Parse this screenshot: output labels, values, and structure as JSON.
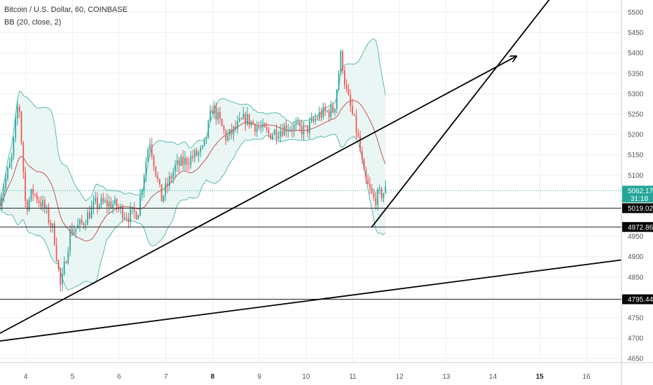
{
  "header": {
    "symbol_line": "Bitcoin / U.S. Dollar, 60, COINBASE",
    "indicator_line": "BB (20, close, 2)"
  },
  "colors": {
    "up": "#26a69a",
    "down": "#ef5350",
    "bb_band": "#26a69a",
    "bb_fill": "#e6f4f2",
    "bb_basis": "#b71c1c",
    "grid": "#eeeeee",
    "trendline": "#000000",
    "level_line": "#222222",
    "price_line": "#26a69a"
  },
  "chart_data": {
    "type": "candlestick",
    "symbol": "Bitcoin / U.S. Dollar",
    "interval": "60",
    "exchange": "COINBASE",
    "ylim": [
      4640,
      5530
    ],
    "y_ticks": [
      5500,
      5450,
      5400,
      5350,
      5300,
      5250,
      5200,
      5150,
      5100,
      4950,
      4900,
      4850,
      4800,
      4750,
      4700,
      4650
    ],
    "x_ticks": [
      {
        "label": "4",
        "day": 4,
        "bold": false
      },
      {
        "label": "5",
        "day": 5,
        "bold": false
      },
      {
        "label": "6",
        "day": 6,
        "bold": false
      },
      {
        "label": "7",
        "day": 7,
        "bold": false
      },
      {
        "label": "8",
        "day": 8,
        "bold": true
      },
      {
        "label": "9",
        "day": 9,
        "bold": false
      },
      {
        "label": "10",
        "day": 10,
        "bold": false
      },
      {
        "label": "11",
        "day": 11,
        "bold": false
      },
      {
        "label": "12",
        "day": 12,
        "bold": false
      },
      {
        "label": "13",
        "day": 13,
        "bold": false
      },
      {
        "label": "14",
        "day": 14,
        "bold": false
      },
      {
        "label": "15",
        "day": 15,
        "bold": true
      },
      {
        "label": "16",
        "day": 16,
        "bold": false
      }
    ],
    "xlim_days": [
      3.45,
      16.75
    ],
    "candle_series_keypoints": [
      {
        "day": 3.45,
        "close": 5040
      },
      {
        "day": 3.55,
        "close": 5080
      },
      {
        "day": 3.7,
        "close": 5140
      },
      {
        "day": 3.85,
        "close": 5290
      },
      {
        "day": 4.0,
        "close": 5020
      },
      {
        "day": 4.15,
        "close": 5060
      },
      {
        "day": 4.4,
        "close": 5020
      },
      {
        "day": 4.6,
        "close": 4960
      },
      {
        "day": 4.75,
        "close": 4820
      },
      {
        "day": 4.95,
        "close": 4960
      },
      {
        "day": 5.2,
        "close": 4980
      },
      {
        "day": 5.5,
        "close": 5030
      },
      {
        "day": 5.85,
        "close": 5030
      },
      {
        "day": 6.2,
        "close": 5000
      },
      {
        "day": 6.4,
        "close": 5010
      },
      {
        "day": 6.65,
        "close": 5190
      },
      {
        "day": 6.9,
        "close": 5040
      },
      {
        "day": 7.2,
        "close": 5120
      },
      {
        "day": 7.5,
        "close": 5140
      },
      {
        "day": 7.8,
        "close": 5160
      },
      {
        "day": 8.0,
        "close": 5270
      },
      {
        "day": 8.3,
        "close": 5190
      },
      {
        "day": 8.7,
        "close": 5240
      },
      {
        "day": 9.2,
        "close": 5200
      },
      {
        "day": 9.6,
        "close": 5220
      },
      {
        "day": 10.0,
        "close": 5210
      },
      {
        "day": 10.3,
        "close": 5250
      },
      {
        "day": 10.6,
        "close": 5260
      },
      {
        "day": 10.75,
        "close": 5400
      },
      {
        "day": 10.85,
        "close": 5310
      },
      {
        "day": 11.1,
        "close": 5200
      },
      {
        "day": 11.25,
        "close": 5090
      },
      {
        "day": 11.45,
        "close": 5040
      },
      {
        "day": 11.7,
        "close": 5062
      }
    ],
    "horizontal_levels": [
      {
        "price": 5019.02,
        "label": "5019.02"
      },
      {
        "price": 4972.86,
        "label": "4972.86"
      },
      {
        "price": 4795.44,
        "label": "4795.44"
      }
    ],
    "last_price": {
      "price": 5062.17,
      "label": "5062.17",
      "countdown": "31:18"
    },
    "trendlines": [
      {
        "from": {
          "day": 3.45,
          "price": 4693
        },
        "to": {
          "day": 16.75,
          "price": 4892
        },
        "arrow": false
      },
      {
        "from": {
          "day": 3.45,
          "price": 4712
        },
        "to": {
          "day": 14.5,
          "price": 5392
        },
        "arrow": true
      },
      {
        "from": {
          "day": 11.4,
          "price": 4972
        },
        "to": {
          "day": 15.3,
          "price": 5545
        },
        "arrow": false
      }
    ]
  }
}
